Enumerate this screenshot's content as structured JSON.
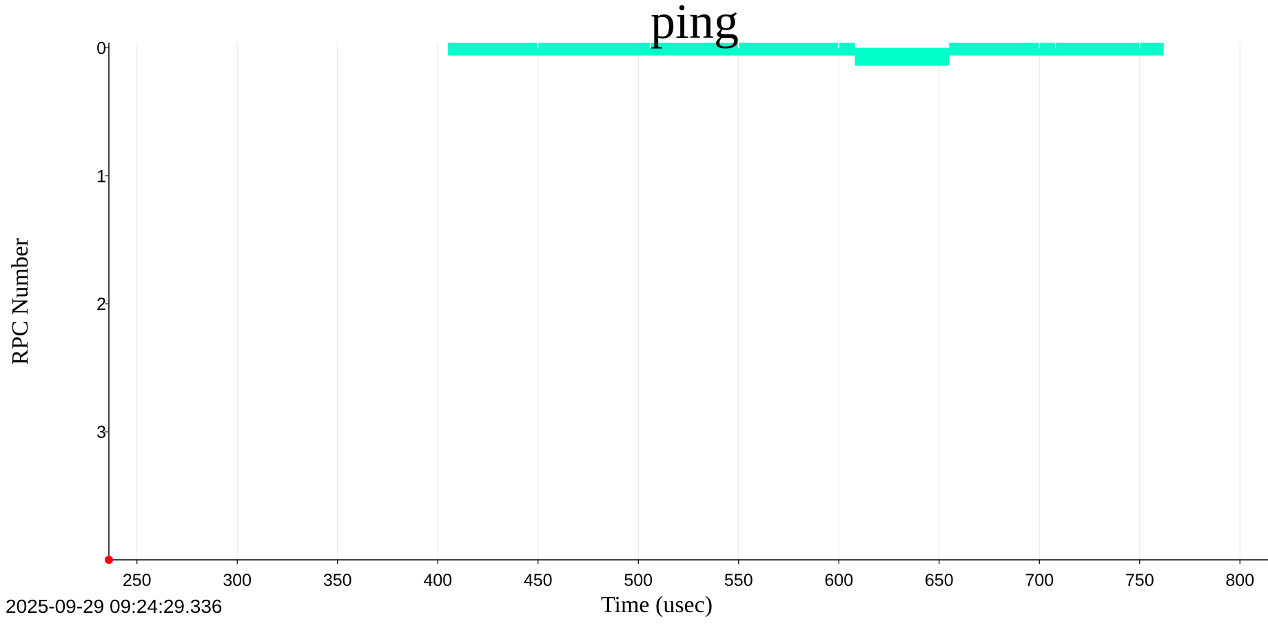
{
  "chart_data": {
    "type": "timeline",
    "title": "ping",
    "xlabel": "Time (usec)",
    "ylabel": "RPC Number",
    "timestamp": "2025-09-29 09:24:29.336",
    "xlim": [
      236,
      814
    ],
    "ylim": [
      -0.04,
      4.0
    ],
    "x_ticks": [
      250,
      300,
      350,
      400,
      450,
      500,
      550,
      600,
      650,
      700,
      750,
      800
    ],
    "y_ticks": [
      0,
      1,
      2,
      3
    ],
    "grid": true,
    "series": [
      {
        "color": "#00ffc8",
        "segments": [
          {
            "rpc": 0,
            "start": 405,
            "end": 608,
            "lane_top": -0.04,
            "lane_bottom": 0.06
          },
          {
            "rpc": 0,
            "start": 608,
            "end": 655,
            "lane_top": 0.0,
            "lane_bottom": 0.14
          },
          {
            "rpc": 0,
            "start": 655,
            "end": 762,
            "lane_top": -0.04,
            "lane_bottom": 0.06
          }
        ],
        "markers": [
          450,
          506,
          550,
          600,
          650,
          700,
          708,
          750
        ]
      }
    ],
    "origin_marker": {
      "x": 236,
      "y": 4.0,
      "color": "#ff0000"
    }
  },
  "colors": {
    "title": "#1010ee",
    "axis_title": "#1010ee",
    "grid": "#e6e6e6",
    "axis": "#000000"
  }
}
